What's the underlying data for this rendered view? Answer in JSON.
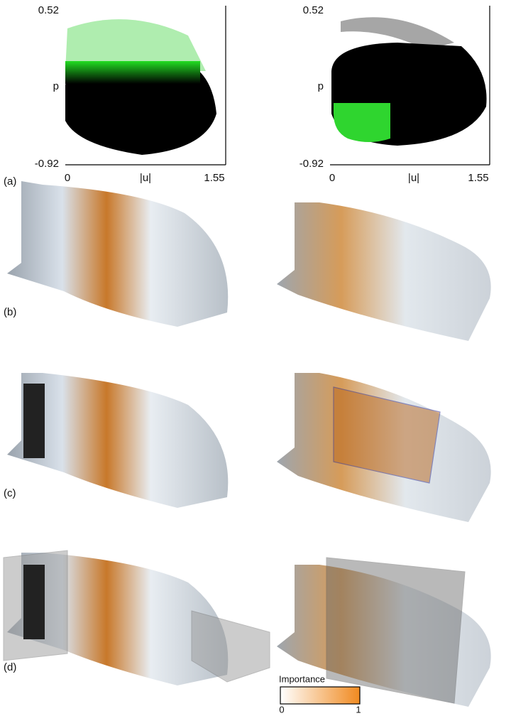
{
  "scatter_left": {
    "y_max": "0.52",
    "y_label": "p",
    "y_min": "-0.92",
    "x_min": "0",
    "x_label": "|u|",
    "x_max": "1.55"
  },
  "scatter_right": {
    "y_max": "0.52",
    "y_label": "p",
    "y_min": "-0.92",
    "x_min": "0",
    "x_label": "|u|",
    "x_max": "1.55"
  },
  "panel_labels": [
    "(a)",
    "(b)",
    "(c)",
    "(d)"
  ],
  "colorbar": {
    "title": "Importance",
    "min": "0",
    "max": "1"
  }
}
